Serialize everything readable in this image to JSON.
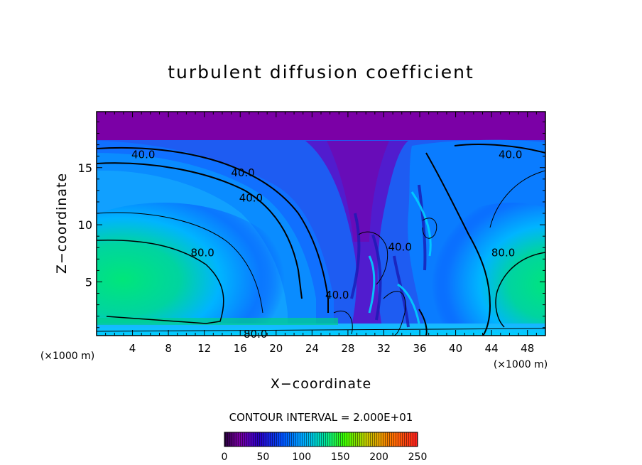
{
  "chart_data": {
    "type": "heatmap",
    "title": "turbulent diffusion coefficient",
    "xlabel": "X−coordinate",
    "ylabel": "Z−coordinate",
    "x_unit": "(×1000 m)",
    "x_unit_right": "(×1000 m)",
    "xlim": [
      0,
      50
    ],
    "ylim": [
      0.3,
      19.9
    ],
    "x_ticks": [
      4,
      8,
      12,
      16,
      20,
      24,
      28,
      32,
      36,
      40,
      44,
      48
    ],
    "y_ticks": [
      5,
      10,
      15
    ],
    "contour_interval_text": "CONTOUR INTERVAL = 2.000E+01",
    "contour_labels": [
      {
        "text": "40.0",
        "x": 5.2,
        "z": 16.2
      },
      {
        "text": "40.0",
        "x": 16.3,
        "z": 14.6
      },
      {
        "text": "40.0",
        "x": 17.2,
        "z": 12.4
      },
      {
        "text": "80.0",
        "x": 11.8,
        "z": 7.6
      },
      {
        "text": "80.0",
        "x": 17.7,
        "z": 0.5
      },
      {
        "text": "40.0",
        "x": 26.8,
        "z": 3.9
      },
      {
        "text": "40.0",
        "x": 33.8,
        "z": 8.1
      },
      {
        "text": "40.0",
        "x": 46.1,
        "z": 16.2
      },
      {
        "text": "80.0",
        "x": 45.3,
        "z": 7.6
      }
    ],
    "colorbar": {
      "min": 0,
      "max": 250,
      "ticks": [
        0,
        50,
        100,
        150,
        200,
        250
      ],
      "colors": [
        "#7b00a6",
        "#2800c8",
        "#0052ff",
        "#00b4ff",
        "#00e680",
        "#3cff00",
        "#c8c800",
        "#ff2000"
      ]
    },
    "field_description_colors": {
      "low": "#7b00a6",
      "mid": "#0096ff",
      "high": "#00e67a"
    }
  }
}
